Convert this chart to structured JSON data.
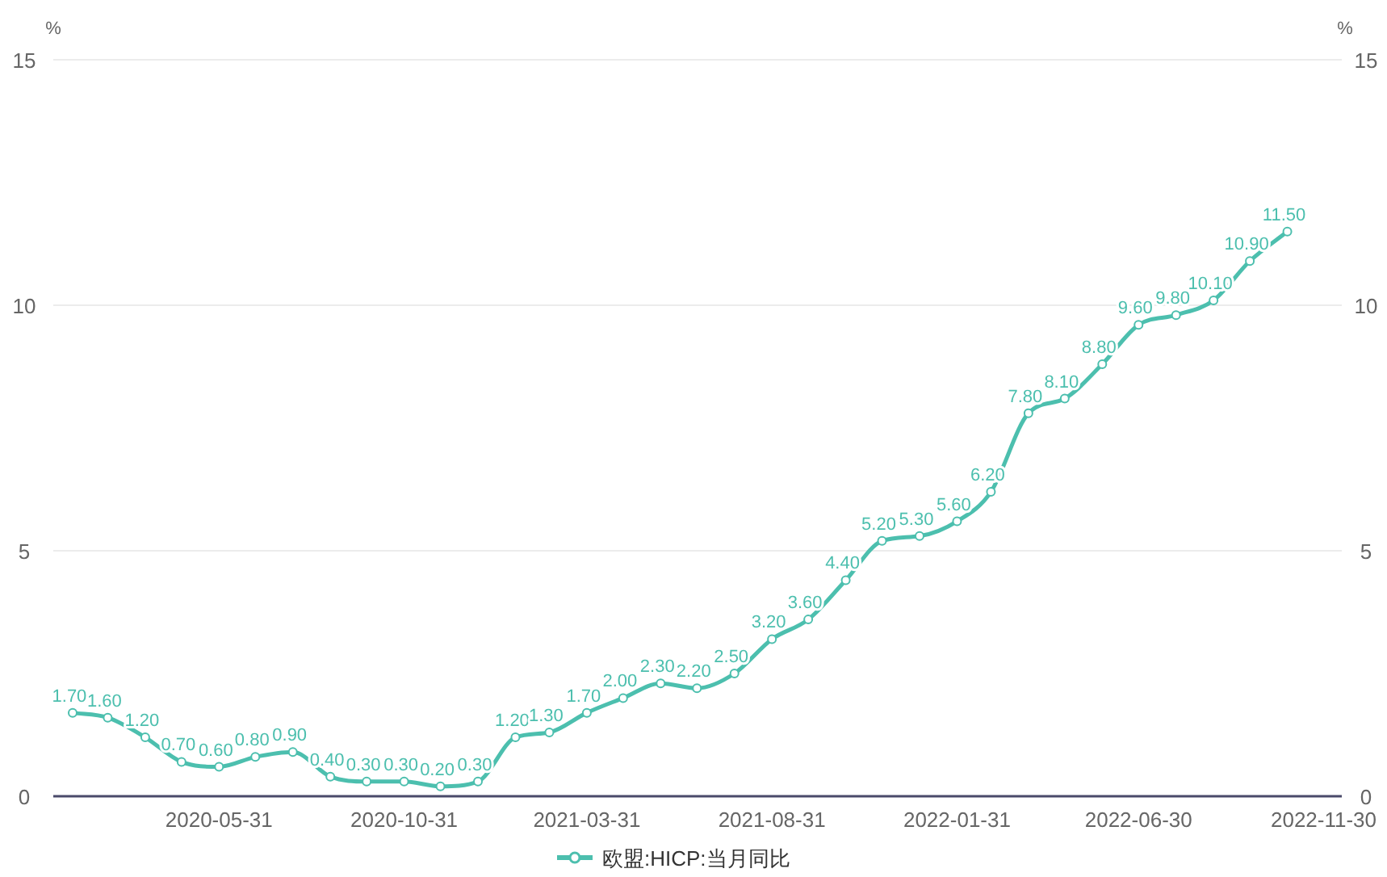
{
  "chart_data": {
    "type": "line",
    "ylabel": "%",
    "y2label": "%",
    "x": [
      "2020-01-31",
      "2020-02-29",
      "2020-03-31",
      "2020-04-30",
      "2020-05-31",
      "2020-06-30",
      "2020-07-31",
      "2020-08-31",
      "2020-09-30",
      "2020-10-31",
      "2020-11-30",
      "2020-12-31",
      "2021-01-31",
      "2021-02-28",
      "2021-03-31",
      "2021-04-30",
      "2021-05-31",
      "2021-06-30",
      "2021-07-31",
      "2021-08-31",
      "2021-09-30",
      "2021-10-31",
      "2021-11-30",
      "2021-12-31",
      "2022-01-31",
      "2022-02-28",
      "2022-03-31",
      "2022-04-30",
      "2022-05-31",
      "2022-06-30",
      "2022-07-31",
      "2022-08-31",
      "2022-09-30",
      "2022-10-31"
    ],
    "series": [
      {
        "name": "欧盟:HICP:当月同比",
        "color": "#4cbfae",
        "values": [
          1.7,
          1.6,
          1.2,
          0.7,
          0.6,
          0.8,
          0.9,
          0.4,
          0.3,
          0.3,
          0.2,
          0.3,
          1.2,
          1.3,
          1.7,
          2.0,
          2.3,
          2.2,
          2.5,
          3.2,
          3.6,
          4.4,
          5.2,
          5.3,
          5.6,
          6.2,
          7.8,
          8.1,
          8.8,
          9.6,
          9.8,
          10.1,
          10.9,
          11.5
        ],
        "value_labels": [
          "1.70",
          "1.60",
          "1.20",
          "0.70",
          "0.60",
          "0.80",
          "0.90",
          "0.40",
          "0.30",
          "0.30",
          "0.20",
          "0.30",
          "1.20",
          "1.30",
          "1.70",
          "2.00",
          "2.30",
          "2.20",
          "2.50",
          "3.20",
          "3.60",
          "4.40",
          "5.20",
          "5.30",
          "5.60",
          "6.20",
          "7.80",
          "8.10",
          "8.80",
          "9.60",
          "9.80",
          "10.10",
          "10.90",
          "11.50"
        ]
      }
    ],
    "xlim": [
      "2020-01-15",
      "2022-12-15"
    ],
    "xticks": [
      "2020-05-31",
      "2020-10-31",
      "2021-03-31",
      "2021-08-31",
      "2022-01-31",
      "2022-06-30",
      "2022-11-30"
    ],
    "ylim": [
      0,
      15
    ],
    "yticks": [
      0,
      5,
      10,
      15
    ],
    "y2lim": [
      0,
      15
    ],
    "y2ticks": [
      0,
      5,
      10,
      15
    ],
    "grid": "y",
    "legend": "bottom",
    "marker": "circle",
    "line_style": "solid"
  }
}
